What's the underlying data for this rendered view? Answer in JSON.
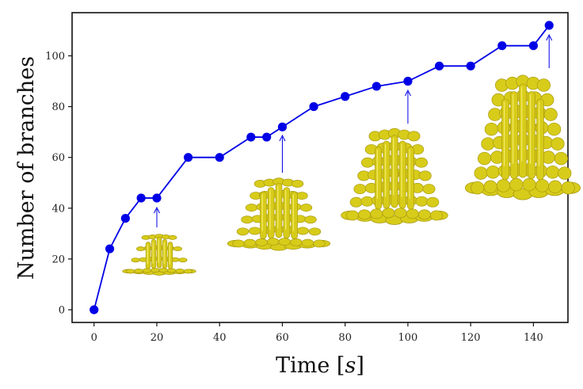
{
  "chart_data": {
    "type": "line",
    "xlabel": "Time",
    "xlabel_unit": "s",
    "ylabel": "Number of branches",
    "xlim": [
      -7,
      151
    ],
    "ylim": [
      -5,
      117
    ],
    "xticks": [
      0,
      20,
      40,
      60,
      80,
      100,
      120,
      140
    ],
    "yticks": [
      0,
      20,
      40,
      60,
      80,
      100
    ],
    "grid": false,
    "legend": "none",
    "series_color": "#0000e6",
    "insets_color": "#d8cc1a",
    "x": [
      0,
      5,
      10,
      15,
      20,
      30,
      40,
      50,
      55,
      60,
      70,
      80,
      90,
      100,
      110,
      120,
      130,
      140,
      145
    ],
    "y": [
      0,
      24,
      36,
      44,
      44,
      60,
      60,
      68,
      68,
      72,
      80,
      84,
      88,
      90,
      96,
      96,
      104,
      104,
      112
    ],
    "annotations": [
      {
        "x": 20,
        "y": 44,
        "label": "inset at t=20"
      },
      {
        "x": 60,
        "y": 72,
        "label": "inset at t=60"
      },
      {
        "x": 100,
        "y": 90,
        "label": "inset at t=100"
      },
      {
        "x": 145,
        "y": 112,
        "label": "inset at t=145"
      }
    ]
  }
}
